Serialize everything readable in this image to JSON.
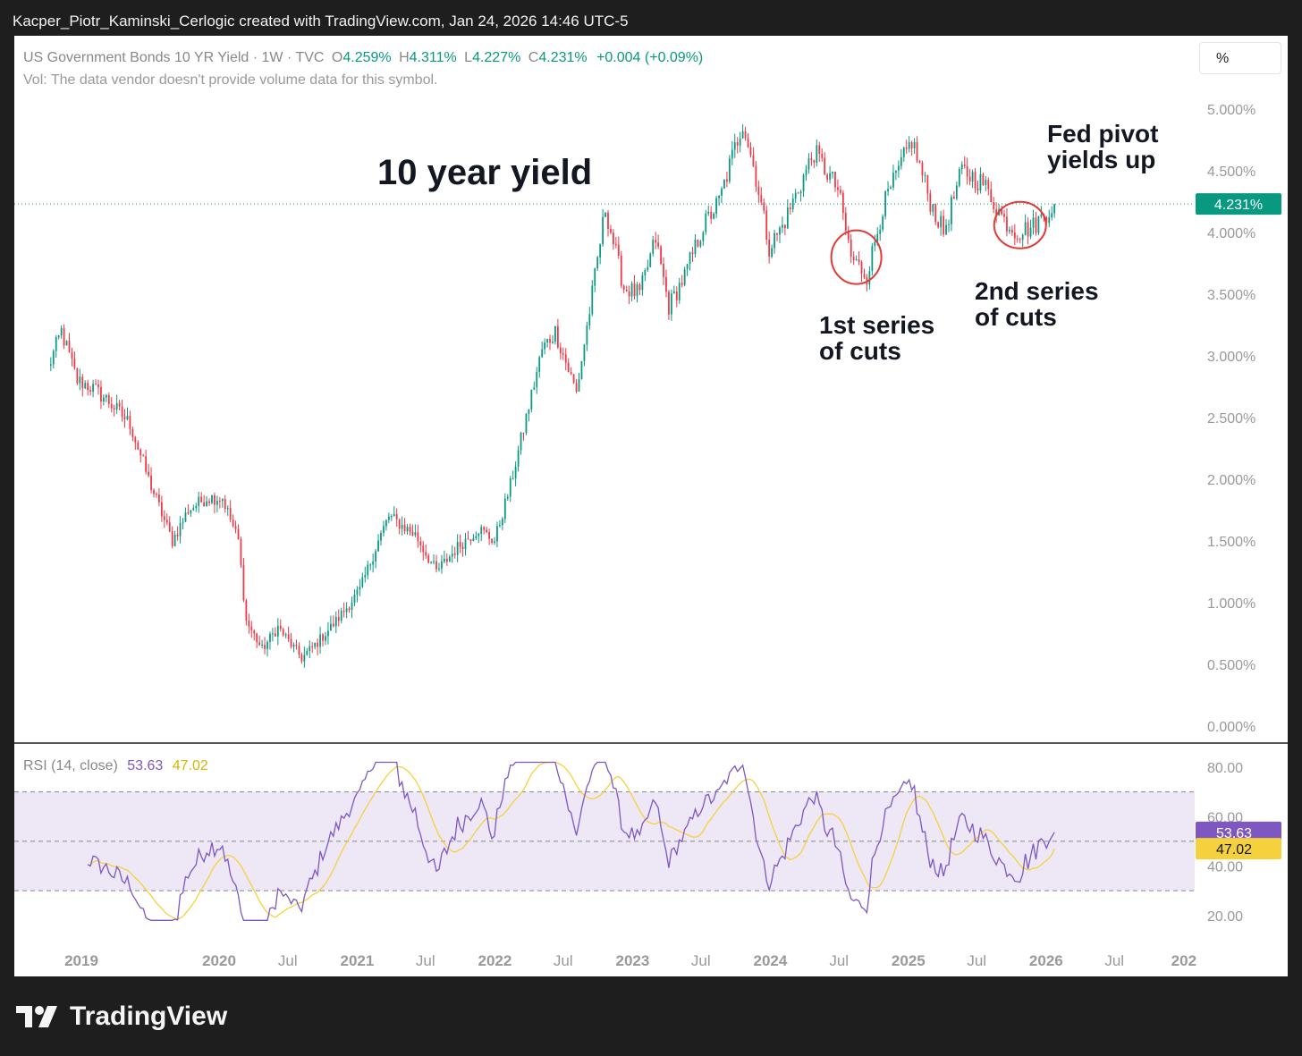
{
  "header": {
    "attribution": "Kacper_Piotr_Kaminski_Cerlogic created with TradingView.com, Jan 24, 2026 14:46 UTC-5"
  },
  "legend": {
    "symbol": "US Government Bonds 10 YR Yield · 1W · TVC",
    "open_label": "O",
    "open": "4.259%",
    "high_label": "H",
    "high": "4.311%",
    "low_label": "L",
    "low": "4.227%",
    "close_label": "C",
    "close": "4.231%",
    "change": "+0.004 (+0.09%)",
    "volume_note": "Vol: The data vendor doesn't provide volume data for this symbol."
  },
  "scale_button": "%",
  "price_badge": "4.231%",
  "rsi": {
    "label": "RSI (14, close)",
    "value": "53.63",
    "ma_value": "47.02"
  },
  "annotations": {
    "title": "10 year yield",
    "fed_pivot": [
      "Fed pivot",
      "yields up"
    ],
    "cuts1": [
      "1st series",
      "of cuts"
    ],
    "cuts2": [
      "2nd series",
      "of cuts"
    ]
  },
  "footer": {
    "brand": "TradingView"
  },
  "colors": {
    "up": "#089981",
    "down": "#f23645",
    "rsi_line": "#7e57c2",
    "rsi_ma": "#f5d23d",
    "rsi_band": "#ede7f6",
    "circle": "#e53935"
  },
  "chart_data": [
    {
      "type": "candlestick",
      "title": "US Government Bonds 10 YR Yield",
      "x_ticks": [
        "2019",
        "2020",
        "Jul",
        "2021",
        "Jul",
        "2022",
        "Jul",
        "2023",
        "Jul",
        "2024",
        "Jul",
        "2025",
        "Jul",
        "2026",
        "Jul",
        "202"
      ],
      "y_ticks": [
        "0.000%",
        "0.500%",
        "1.000%",
        "1.500%",
        "2.000%",
        "2.500%",
        "3.000%",
        "3.500%",
        "4.000%",
        "4.500%",
        "5.000%"
      ],
      "ylim": [
        0,
        5
      ],
      "anchors": [
        [
          "2018-10-05",
          2.9
        ],
        [
          "2018-11-09",
          3.2
        ],
        [
          "2018-12-21",
          2.8
        ],
        [
          "2019-01-25",
          2.75
        ],
        [
          "2019-03-08",
          2.65
        ],
        [
          "2019-05-10",
          2.45
        ],
        [
          "2019-06-28",
          2.0
        ],
        [
          "2019-08-30",
          1.5
        ],
        [
          "2019-10-11",
          1.75
        ],
        [
          "2019-11-29",
          1.85
        ],
        [
          "2020-01-10",
          1.85
        ],
        [
          "2020-02-21",
          1.5
        ],
        [
          "2020-03-13",
          0.85
        ],
        [
          "2020-04-24",
          0.62
        ],
        [
          "2020-06-05",
          0.8
        ],
        [
          "2020-08-07",
          0.55
        ],
        [
          "2020-09-18",
          0.68
        ],
        [
          "2020-11-06",
          0.85
        ],
        [
          "2021-01-08",
          1.1
        ],
        [
          "2021-02-26",
          1.5
        ],
        [
          "2021-03-26",
          1.7
        ],
        [
          "2021-06-04",
          1.55
        ],
        [
          "2021-07-30",
          1.25
        ],
        [
          "2021-09-24",
          1.45
        ],
        [
          "2021-11-19",
          1.6
        ],
        [
          "2021-12-31",
          1.5
        ],
        [
          "2022-02-11",
          1.95
        ],
        [
          "2022-03-25",
          2.5
        ],
        [
          "2022-05-06",
          3.05
        ],
        [
          "2022-06-10",
          3.2
        ],
        [
          "2022-08-05",
          2.7
        ],
        [
          "2022-09-16",
          3.5
        ],
        [
          "2022-10-21",
          4.2
        ],
        [
          "2022-12-09",
          3.55
        ],
        [
          "2023-01-20",
          3.5
        ],
        [
          "2023-03-03",
          3.95
        ],
        [
          "2023-04-07",
          3.4
        ],
        [
          "2023-05-19",
          3.65
        ],
        [
          "2023-07-07",
          4.05
        ],
        [
          "2023-08-18",
          4.25
        ],
        [
          "2023-10-20",
          4.9
        ],
        [
          "2023-11-24",
          4.45
        ],
        [
          "2023-12-29",
          3.88
        ],
        [
          "2024-02-02",
          4.05
        ],
        [
          "2024-04-26",
          4.65
        ],
        [
          "2024-06-28",
          4.35
        ],
        [
          "2024-08-02",
          3.8
        ],
        [
          "2024-09-13",
          3.65
        ],
        [
          "2024-10-25",
          4.2
        ],
        [
          "2025-01-10",
          4.75
        ],
        [
          "2025-02-28",
          4.25
        ],
        [
          "2025-04-04",
          4.0
        ],
        [
          "2025-05-23",
          4.5
        ],
        [
          "2025-07-18",
          4.4
        ],
        [
          "2025-09-12",
          4.1
        ],
        [
          "2025-10-17",
          4.0
        ],
        [
          "2025-11-28",
          4.05
        ],
        [
          "2026-01-23",
          4.23
        ]
      ]
    },
    {
      "type": "line",
      "title": "RSI (14, close)",
      "y_ticks": [
        "20.00",
        "40.00",
        "60.00",
        "80.00"
      ],
      "ylim": [
        15,
        85
      ],
      "bands": [
        30,
        50,
        70
      ],
      "series": [
        {
          "name": "RSI",
          "last": 53.63
        },
        {
          "name": "RSI MA",
          "last": 47.02
        }
      ]
    }
  ]
}
